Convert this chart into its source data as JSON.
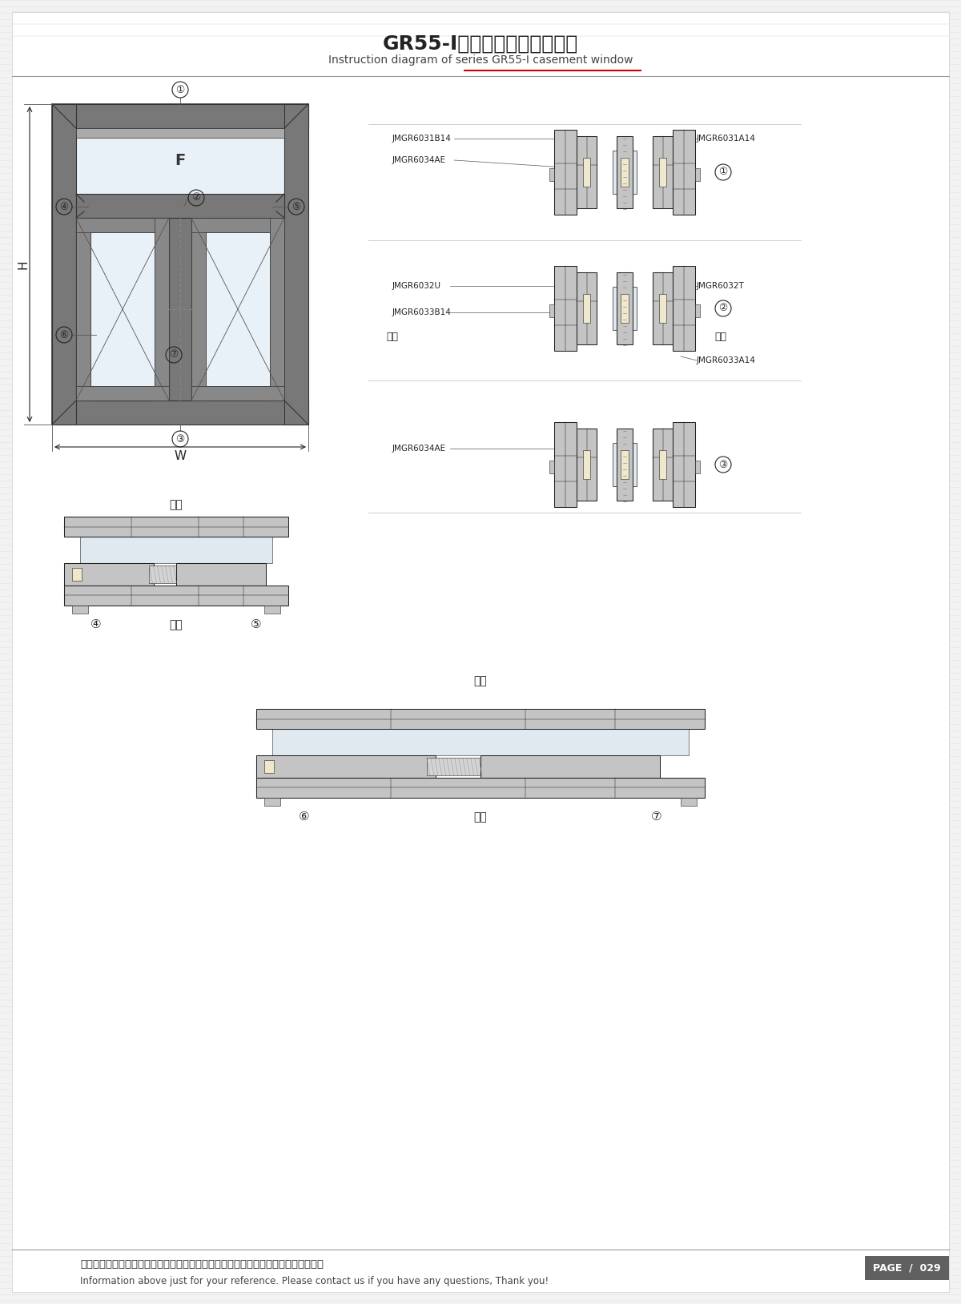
{
  "title_cn": "GR55-I隔热系列平开窗结构图",
  "title_en": "Instruction diagram of series GR55-I casement window",
  "footer_cn": "图中所示型材截面、装配、编号、尺寸及重量仅供参考。如有疑问，请向本公司查询。",
  "footer_en": "Information above just for your reference. Please contact us if you have any questions, Thank you!",
  "page": "PAGE  /  029",
  "bg_color": "#f0f0f0",
  "bg_stripe_color": "#e8e8e8",
  "frame_color": "#666666",
  "dark_gray": "#4a4a4a",
  "light_gray": "#aaaaaa",
  "white": "#ffffff",
  "black": "#000000",
  "red_line": "#cc0000"
}
